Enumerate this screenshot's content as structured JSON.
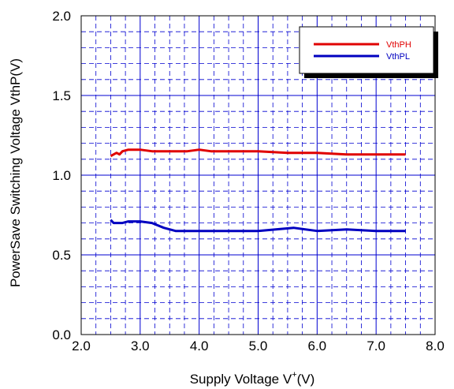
{
  "chart_data": {
    "type": "line",
    "xlabel_main": "Supply Voltage  V",
    "xlabel_sup": "+",
    "xlabel_end": "(V)",
    "ylabel": "PowerSave Switching Voltage   VthP(V)",
    "xlim": [
      2.0,
      8.0
    ],
    "ylim": [
      0.0,
      2.0
    ],
    "x_ticks": [
      "2.0",
      "3.0",
      "4.0",
      "5.0",
      "6.0",
      "7.0",
      "8.0"
    ],
    "y_ticks": [
      "0.0",
      "0.5",
      "1.0",
      "1.5",
      "2.0"
    ],
    "grid": "major solid, minor dashed",
    "legend_position": "top-right",
    "series": [
      {
        "name": "VthPH",
        "color": "#e00000",
        "x": [
          2.5,
          2.55,
          2.6,
          2.65,
          2.7,
          2.8,
          3.0,
          3.2,
          3.5,
          3.8,
          4.0,
          4.2,
          4.5,
          5.0,
          5.5,
          6.0,
          6.5,
          7.0,
          7.5
        ],
        "y": [
          1.12,
          1.13,
          1.14,
          1.13,
          1.15,
          1.16,
          1.16,
          1.15,
          1.15,
          1.15,
          1.16,
          1.15,
          1.15,
          1.15,
          1.14,
          1.14,
          1.13,
          1.13,
          1.13
        ]
      },
      {
        "name": "VthPL",
        "color": "#0000c0",
        "x": [
          2.5,
          2.55,
          2.6,
          2.7,
          2.8,
          3.0,
          3.2,
          3.4,
          3.6,
          4.0,
          4.5,
          5.0,
          5.3,
          5.6,
          6.0,
          6.5,
          7.0,
          7.5
        ],
        "y": [
          0.72,
          0.7,
          0.7,
          0.7,
          0.71,
          0.71,
          0.7,
          0.67,
          0.65,
          0.65,
          0.65,
          0.65,
          0.66,
          0.67,
          0.65,
          0.66,
          0.65,
          0.65
        ]
      }
    ]
  }
}
